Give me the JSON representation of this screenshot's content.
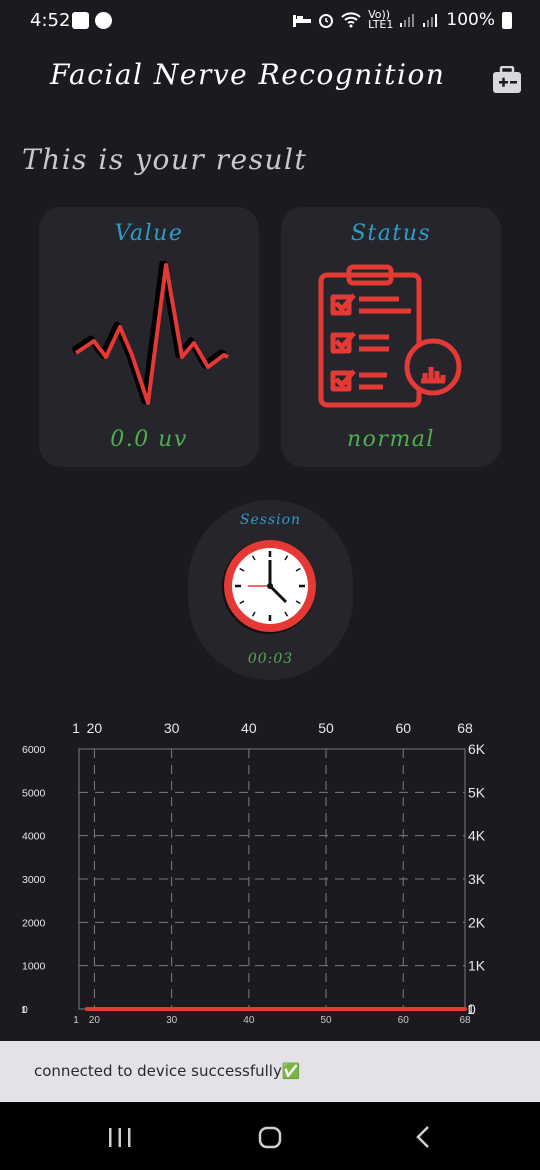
{
  "status_bar": {
    "time": "4:52",
    "battery_text": "100%",
    "volte_top": "Vo))",
    "volte_bottom": "LTE1"
  },
  "app": {
    "title": "Facial Nerve Recognition",
    "header_icon": "medical-kit-icon"
  },
  "result_heading": "This is your result",
  "cards": {
    "value": {
      "title": "Value",
      "reading": "0.0 uv",
      "icon": "heartbeat-icon"
    },
    "status": {
      "title": "Status",
      "reading": "normal",
      "icon": "clipboard-chart-icon"
    }
  },
  "session": {
    "title": "Session",
    "time": "00:03",
    "icon": "clock-icon"
  },
  "chart_data": {
    "type": "line",
    "x_ticks_top": [
      "20",
      "30",
      "40",
      "50",
      "60",
      "68"
    ],
    "x_top_overlap_label": "1",
    "x_ticks_bottom": [
      "20",
      "30",
      "40",
      "50",
      "60",
      "68"
    ],
    "x_bottom_overlap_label": "1",
    "y_ticks_left": [
      "6000",
      "5000",
      "4000",
      "3000",
      "2000",
      "1000",
      "0"
    ],
    "y_left_overlap_label": "1",
    "y_ticks_right": [
      "6K",
      "5K",
      "4K",
      "3K",
      "2K",
      "1K",
      "0"
    ],
    "y_right_overlap_label": "1",
    "xlim": [
      18,
      68
    ],
    "ylim": [
      0,
      6000
    ],
    "series": [
      {
        "x": [
          19,
          68
        ],
        "y": [
          0,
          0
        ]
      }
    ],
    "grid": true,
    "line_color": "#e53935",
    "grid_color": "#7b7b86"
  },
  "toast": {
    "message": "connected to device successfully✅"
  },
  "nav": {
    "recent": "recent-apps-icon",
    "home": "home-icon",
    "back": "back-icon"
  },
  "colors": {
    "background": "#1b1a1f",
    "card": "#26252b",
    "title_blue": "#2a9ec8",
    "value_green": "#4caf50",
    "accent_red": "#e53935"
  }
}
